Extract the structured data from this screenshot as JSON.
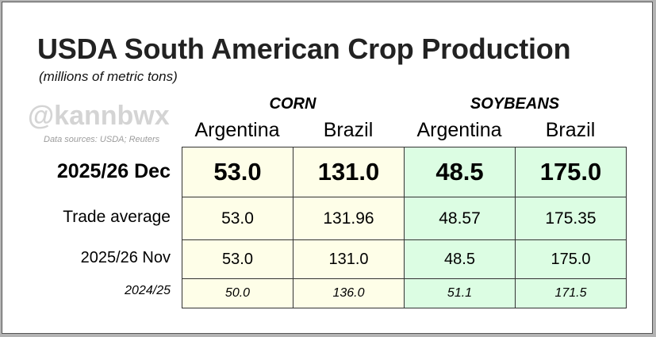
{
  "header": {
    "title": "USDA South American Crop Production",
    "subtitle": "(millions of metric tons)",
    "watermark": "@kannbwx",
    "sources": "Data sources: USDA; Reuters"
  },
  "colors": {
    "corn_fill": "#fefee8",
    "soybean_fill": "#dcfde3",
    "border": "#333333"
  },
  "chart_data": {
    "type": "table",
    "title": "USDA South American Crop Production",
    "subtitle": "(millions of metric tons)",
    "groups": [
      "CORN",
      "SOYBEANS"
    ],
    "columns": [
      "Argentina",
      "Brazil",
      "Argentina",
      "Brazil"
    ],
    "rows": [
      {
        "label": "2025/26 Dec",
        "values": [
          "53.0",
          "131.0",
          "48.5",
          "175.0"
        ]
      },
      {
        "label": "Trade average",
        "values": [
          "53.0",
          "131.96",
          "48.57",
          "175.35"
        ]
      },
      {
        "label": "2025/26 Nov",
        "values": [
          "53.0",
          "131.0",
          "48.5",
          "175.0"
        ]
      },
      {
        "label": "2024/25",
        "values": [
          "50.0",
          "136.0",
          "51.1",
          "171.5"
        ]
      }
    ]
  }
}
